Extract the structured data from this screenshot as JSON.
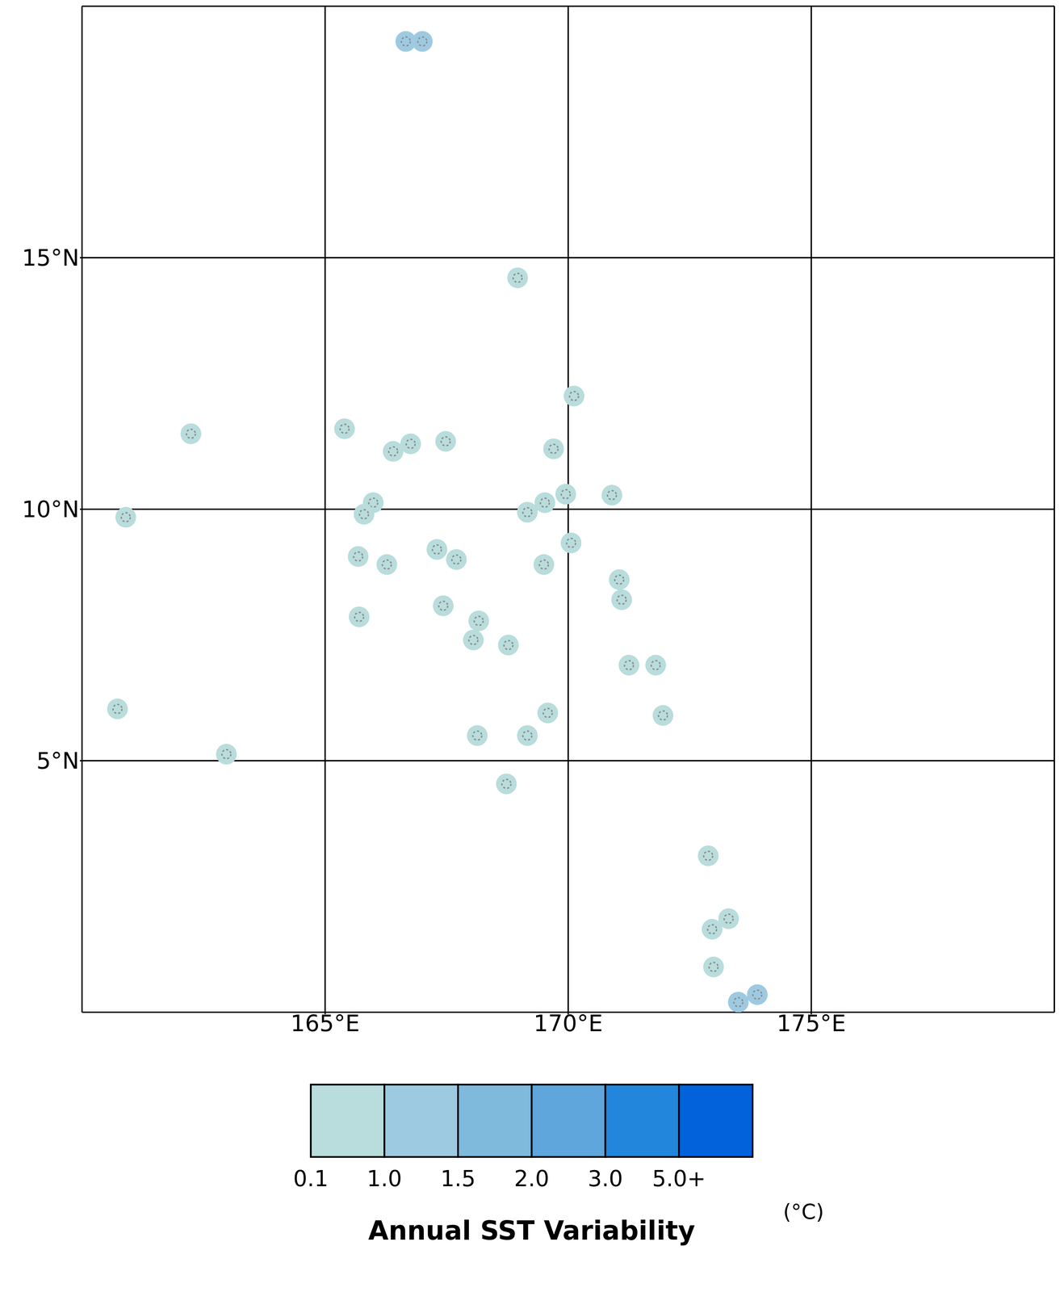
{
  "chart_data": {
    "type": "scatter",
    "xlim": [
      160,
      180
    ],
    "ylim": [
      0,
      20
    ],
    "xticks": [
      {
        "value": 165,
        "label": "165°E"
      },
      {
        "value": 170,
        "label": "170°E"
      },
      {
        "value": 175,
        "label": "175°E"
      }
    ],
    "yticks": [
      {
        "value": 5,
        "label": "5°N"
      },
      {
        "value": 10,
        "label": "10°N"
      },
      {
        "value": 15,
        "label": "15°N"
      }
    ],
    "grid": true,
    "tick_labels": true,
    "marker": "circle",
    "x": [
      166.66,
      167.0,
      168.96,
      170.12,
      162.24,
      165.4,
      166.76,
      166.4,
      167.48,
      169.7,
      165.99,
      165.8,
      160.9,
      169.95,
      169.52,
      169.16,
      170.9,
      170.06,
      165.68,
      166.27,
      167.3,
      167.7,
      169.5,
      171.05,
      171.1,
      167.43,
      165.7,
      168.16,
      168.05,
      168.77,
      171.25,
      171.8,
      171.95,
      160.73,
      162.97,
      169.58,
      168.13,
      169.16,
      168.73,
      172.88,
      172.96,
      173.3,
      172.99,
      173.5,
      173.89
    ],
    "y": [
      19.3,
      19.3,
      14.6,
      12.25,
      11.5,
      11.6,
      11.3,
      11.15,
      11.35,
      11.2,
      10.13,
      9.9,
      9.84,
      10.3,
      10.13,
      9.94,
      10.28,
      9.33,
      9.06,
      8.9,
      9.2,
      9.0,
      8.9,
      8.6,
      8.2,
      8.08,
      7.86,
      7.78,
      7.4,
      7.3,
      6.9,
      6.9,
      5.9,
      6.03,
      5.13,
      5.95,
      5.5,
      5.5,
      4.54,
      3.11,
      1.65,
      1.86,
      0.9,
      0.2,
      0.35
    ],
    "values": [
      1.2,
      1.2,
      0.6,
      0.6,
      0.6,
      0.6,
      0.6,
      0.6,
      0.6,
      0.6,
      0.6,
      0.6,
      0.6,
      0.6,
      0.6,
      0.6,
      0.6,
      0.6,
      0.6,
      0.6,
      0.6,
      0.6,
      0.6,
      0.6,
      0.6,
      0.6,
      0.6,
      0.6,
      0.6,
      0.6,
      0.6,
      0.6,
      0.6,
      0.6,
      0.6,
      0.6,
      0.6,
      0.6,
      0.6,
      0.6,
      0.6,
      0.6,
      0.6,
      1.1,
      1.1
    ],
    "colorbar": {
      "title": "Annual SST Variability",
      "unit": "(°C)",
      "ticks": [
        0.1,
        {
          "value": 1,
          "label": "1.0"
        },
        1.5,
        {
          "value": 2,
          "label": "2.0"
        },
        {
          "value": 3,
          "label": "3.0"
        },
        {
          "value": 5,
          "label": "5.0+"
        }
      ],
      "colors": [
        "#b9dcdc",
        "#9ecae1",
        "#7fb9dc",
        "#5ea6db",
        "#2186dc",
        "#0162dc"
      ]
    }
  }
}
